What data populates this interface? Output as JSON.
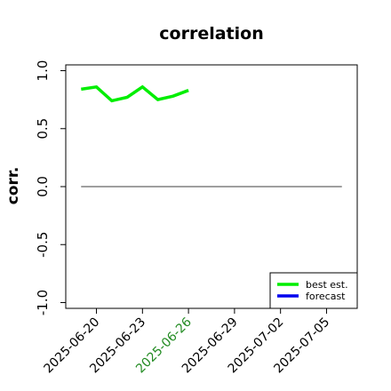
{
  "chart_data": {
    "type": "line",
    "title": "correlation",
    "xlabel": "",
    "ylabel": "corr.",
    "ylim": [
      -1.05,
      1.05
    ],
    "yticks": [
      -1.0,
      -0.5,
      0.0,
      0.5,
      1.0
    ],
    "ytick_labels": [
      "-1.0",
      "-0.5",
      "0.0",
      "0.5",
      "1.0"
    ],
    "xlim": [
      "2025-06-18",
      "2025-07-07"
    ],
    "xticks": [
      "2025-06-20",
      "2025-06-23",
      "2025-06-26",
      "2025-06-29",
      "2025-07-02",
      "2025-07-05"
    ],
    "xtick_labels": [
      "2025-06-20",
      "2025-06-23",
      "2025-06-26",
      "2025-06-29",
      "2025-07-02",
      "2025-07-05"
    ],
    "highlight_tick": "2025-06-26",
    "highlight_color": "#228b22",
    "reference_line": {
      "y": 0.0,
      "from": "2025-06-19",
      "to": "2025-07-06",
      "color": "#666666"
    },
    "grid": false,
    "legend": "bottom-right",
    "series": [
      {
        "name": "best est.",
        "color": "#00ee00",
        "x": [
          "2025-06-19",
          "2025-06-20",
          "2025-06-21",
          "2025-06-22",
          "2025-06-23",
          "2025-06-24",
          "2025-06-25",
          "2025-06-26"
        ],
        "values": [
          0.84,
          0.86,
          0.74,
          0.77,
          0.86,
          0.75,
          0.78,
          0.83
        ]
      },
      {
        "name": "forecast",
        "color": "#0000ee",
        "x": [],
        "values": []
      }
    ]
  }
}
